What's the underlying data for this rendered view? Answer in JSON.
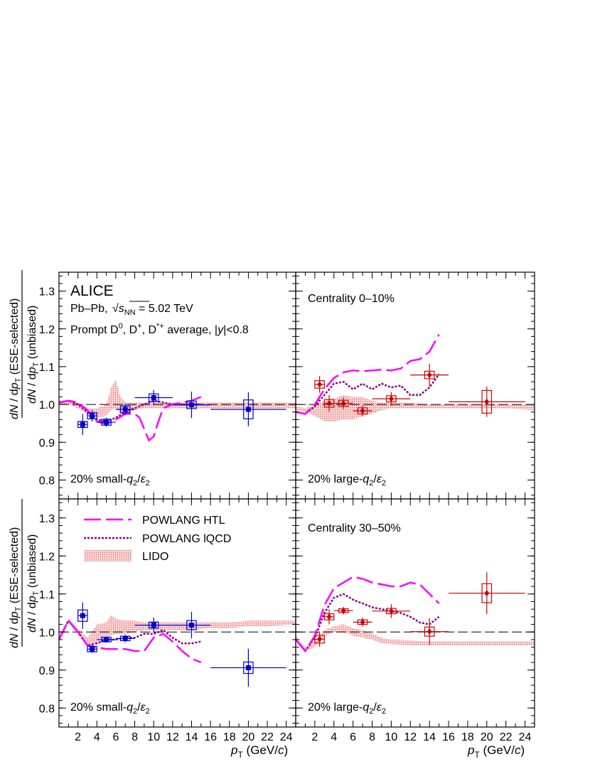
{
  "chart_data": {
    "type": "scatter",
    "experiment": "ALICE",
    "system_line": [
      "Pb–Pb, ",
      "s",
      "NN",
      " = 5.02 TeV"
    ],
    "species_line": [
      "Prompt D",
      "0",
      ", D",
      "+",
      ", D",
      "*+",
      " average, |",
      "y",
      "|<0.8"
    ],
    "ylabel_numerator": [
      "dN / dp",
      "T",
      " (ESE-selected)"
    ],
    "ylabel_denominator": [
      "dN / dp",
      "T",
      " (unbiased)"
    ],
    "xlabel": [
      "p",
      "T",
      " (GeV/",
      "c",
      ")"
    ],
    "xlim": [
      0,
      25
    ],
    "ylim": [
      0.75,
      1.35
    ],
    "x_ticks": [
      2,
      4,
      6,
      8,
      10,
      12,
      14,
      16,
      18,
      20,
      22,
      24
    ],
    "y_ticks": [
      0.8,
      0.9,
      1.0,
      1.1,
      1.2,
      1.3
    ],
    "y_tick_labels": [
      "0.8",
      "0.9",
      "1.0",
      "1.1",
      "1.2",
      "1.3"
    ],
    "legend": [
      {
        "key": "htl",
        "label": "POWLANG HTL",
        "color": "#ff00ff",
        "style": "long-dash"
      },
      {
        "key": "lqcd",
        "label": "POWLANG lQCD",
        "color": "#8b008b",
        "style": "dotted"
      },
      {
        "key": "lido",
        "label": "LIDO",
        "color": "#f08080",
        "style": "band"
      }
    ],
    "panels": [
      {
        "id": "small-q2-0-10",
        "centrality_label": "",
        "selection_label": [
          "20% small-",
          "q",
          "2",
          "/",
          "ε",
          "2"
        ],
        "marker_color": "#0000cc",
        "points": [
          {
            "x": 2.5,
            "y": 0.947,
            "stat": 0.028,
            "xerr": 0.5,
            "sys": 0.008
          },
          {
            "x": 3.5,
            "y": 0.97,
            "stat": 0.015,
            "xerr": 0.5,
            "sys": 0.008
          },
          {
            "x": 5.0,
            "y": 0.953,
            "stat": 0.012,
            "xerr": 1.0,
            "sys": 0.008
          },
          {
            "x": 7.0,
            "y": 0.987,
            "stat": 0.015,
            "xerr": 1.0,
            "sys": 0.009
          },
          {
            "x": 10.0,
            "y": 1.018,
            "stat": 0.02,
            "xerr": 2.0,
            "sys": 0.01
          },
          {
            "x": 14.0,
            "y": 0.999,
            "stat": 0.035,
            "xerr": 2.0,
            "sys": 0.01
          },
          {
            "x": 20.0,
            "y": 0.987,
            "stat": 0.045,
            "xerr": 4.0,
            "sys": 0.025
          }
        ],
        "htl": {
          "x": [
            0,
            1,
            2,
            3,
            4,
            5,
            6,
            7,
            8,
            8.5,
            9,
            9.5,
            10,
            10.5,
            11,
            12,
            13,
            14,
            15
          ],
          "y": [
            1.005,
            1.01,
            1.005,
            0.985,
            0.955,
            0.948,
            0.96,
            0.975,
            0.975,
            0.965,
            0.935,
            0.905,
            0.915,
            0.955,
            0.99,
            1.0,
            1.005,
            1.01,
            1.02
          ]
        },
        "lqcd": {
          "x": [
            0,
            1,
            2,
            3,
            4,
            5,
            6,
            7,
            8,
            9,
            10,
            11,
            12,
            13,
            14,
            15
          ],
          "y": [
            1.005,
            1.01,
            1.0,
            0.98,
            0.96,
            0.955,
            0.965,
            0.98,
            0.99,
            1.0,
            1.01,
            1.005,
            1.0,
            1.0,
            1.0,
            1.0
          ]
        },
        "lido": {
          "x": [
            0,
            1,
            2,
            3,
            4,
            5,
            5.5,
            6,
            6.5,
            7,
            8,
            9,
            10,
            11,
            12,
            14,
            16,
            18,
            20,
            22,
            25
          ],
          "lo": [
            1.0,
            1.0,
            0.99,
            0.975,
            0.965,
            0.97,
            0.985,
            0.99,
            0.975,
            0.975,
            0.985,
            0.99,
            0.99,
            0.99,
            0.99,
            0.99,
            0.99,
            0.99,
            0.99,
            0.99,
            0.99
          ],
          "hi": [
            1.01,
            1.01,
            1.005,
            0.99,
            0.99,
            1.0,
            1.045,
            1.065,
            1.02,
            1.005,
            1.005,
            1.005,
            1.005,
            1.005,
            1.005,
            1.005,
            1.005,
            1.005,
            1.005,
            1.005,
            1.005
          ]
        }
      },
      {
        "id": "large-q2-0-10",
        "centrality_label": "Centrality 0–10%",
        "selection_label": [
          "20% large-",
          "q",
          "2",
          "/",
          "ε",
          "2"
        ],
        "marker_color": "#cc0000",
        "points": [
          {
            "x": 2.5,
            "y": 1.053,
            "stat": 0.022,
            "xerr": 0.5,
            "sys": 0.01
          },
          {
            "x": 3.5,
            "y": 1.003,
            "stat": 0.022,
            "xerr": 0.5,
            "sys": 0.01
          },
          {
            "x": 5.0,
            "y": 1.003,
            "stat": 0.015,
            "xerr": 1.0,
            "sys": 0.008
          },
          {
            "x": 7.0,
            "y": 0.983,
            "stat": 0.015,
            "xerr": 1.0,
            "sys": 0.008
          },
          {
            "x": 10.0,
            "y": 1.015,
            "stat": 0.018,
            "xerr": 2.0,
            "sys": 0.008
          },
          {
            "x": 14.0,
            "y": 1.078,
            "stat": 0.03,
            "xerr": 2.0,
            "sys": 0.01
          },
          {
            "x": 20.0,
            "y": 1.007,
            "stat": 0.04,
            "xerr": 4.0,
            "sys": 0.03
          }
        ],
        "htl": {
          "x": [
            0,
            1,
            2,
            3,
            4,
            5,
            6,
            7,
            8,
            9,
            10,
            11,
            12,
            13,
            14,
            15
          ],
          "y": [
            0.98,
            0.975,
            1.0,
            1.04,
            1.07,
            1.085,
            1.09,
            1.088,
            1.09,
            1.092,
            1.09,
            1.095,
            1.115,
            1.12,
            1.14,
            1.185
          ]
        },
        "lqcd": {
          "x": [
            0,
            1,
            2,
            3,
            4,
            5,
            6,
            7,
            8,
            9,
            10,
            11,
            12,
            13,
            14,
            15
          ],
          "y": [
            0.98,
            0.975,
            0.995,
            1.025,
            1.055,
            1.06,
            1.04,
            1.055,
            1.04,
            1.055,
            1.045,
            1.05,
            1.025,
            1.025,
            1.045,
            1.08
          ]
        },
        "lido": {
          "x": [
            0,
            1,
            2,
            3,
            4,
            5,
            6,
            7,
            8,
            9,
            10,
            12,
            14,
            16,
            18,
            20,
            22,
            25
          ],
          "lo": [
            0.985,
            0.98,
            0.97,
            0.955,
            0.955,
            0.96,
            0.96,
            0.97,
            0.975,
            0.985,
            0.99,
            0.99,
            0.99,
            0.99,
            0.99,
            0.99,
            0.99,
            0.985
          ],
          "hi": [
            0.995,
            0.99,
            1.0,
            1.01,
            1.015,
            1.025,
            1.02,
            1.02,
            1.01,
            1.005,
            1.005,
            1.005,
            1.0,
            1.0,
            1.0,
            1.0,
            1.0,
            0.998
          ]
        }
      },
      {
        "id": "small-q2-30-50",
        "centrality_label": "",
        "selection_label": [
          "20% small-",
          "q",
          "2",
          "/",
          "ε",
          "2"
        ],
        "marker_color": "#0000cc",
        "points": [
          {
            "x": 2.5,
            "y": 1.043,
            "stat": 0.035,
            "xerr": 0.5,
            "sys": 0.015
          },
          {
            "x": 3.5,
            "y": 0.955,
            "stat": 0.01,
            "xerr": 0.5,
            "sys": 0.007
          },
          {
            "x": 5.0,
            "y": 0.98,
            "stat": 0.008,
            "xerr": 1.0,
            "sys": 0.006
          },
          {
            "x": 7.0,
            "y": 0.983,
            "stat": 0.01,
            "xerr": 1.0,
            "sys": 0.006
          },
          {
            "x": 10.0,
            "y": 1.018,
            "stat": 0.02,
            "xerr": 2.0,
            "sys": 0.008
          },
          {
            "x": 14.0,
            "y": 1.018,
            "stat": 0.035,
            "xerr": 2.0,
            "sys": 0.012
          },
          {
            "x": 20.0,
            "y": 0.906,
            "stat": 0.05,
            "xerr": 4.0,
            "sys": 0.015
          }
        ],
        "htl": {
          "x": [
            0,
            1,
            2,
            3,
            4,
            5,
            6,
            7,
            8,
            9,
            10,
            11,
            12,
            13,
            14,
            15
          ],
          "y": [
            0.98,
            1.03,
            1.0,
            0.965,
            0.96,
            0.955,
            0.955,
            0.955,
            0.95,
            0.95,
            0.985,
            0.995,
            0.975,
            0.95,
            0.93,
            0.92
          ]
        },
        "lqcd": {
          "x": [
            0,
            1,
            2,
            3,
            4,
            5,
            6,
            7,
            8,
            9,
            10,
            11,
            12,
            13,
            14,
            15
          ],
          "y": [
            0.98,
            1.03,
            1.0,
            0.965,
            0.97,
            0.98,
            0.98,
            0.985,
            0.985,
            0.995,
            0.995,
            1.005,
            0.985,
            0.97,
            0.97,
            0.975
          ]
        },
        "lido": {
          "x": [
            0,
            1,
            2,
            3,
            4,
            5,
            5.5,
            6,
            7,
            8,
            9,
            10,
            12,
            14,
            16,
            18,
            20,
            22,
            25
          ],
          "lo": [
            0.98,
            1.025,
            0.995,
            0.965,
            0.97,
            0.985,
            0.99,
            0.995,
            0.995,
            1.0,
            1.005,
            1.005,
            1.005,
            1.005,
            1.01,
            1.01,
            1.015,
            1.015,
            1.02
          ],
          "hi": [
            0.99,
            1.035,
            1.01,
            0.985,
            1.02,
            1.025,
            1.045,
            1.035,
            1.03,
            1.03,
            1.025,
            1.025,
            1.025,
            1.025,
            1.025,
            1.025,
            1.03,
            1.03,
            1.03
          ]
        }
      },
      {
        "id": "large-q2-30-50",
        "centrality_label": "Centrality 30–50%",
        "selection_label": [
          "20% large-",
          "q",
          "2",
          "/",
          "ε",
          "2"
        ],
        "marker_color": "#cc0000",
        "points": [
          {
            "x": 2.5,
            "y": 0.981,
            "stat": 0.02,
            "xerr": 0.5,
            "sys": 0.01
          },
          {
            "x": 3.5,
            "y": 1.04,
            "stat": 0.02,
            "xerr": 0.5,
            "sys": 0.008
          },
          {
            "x": 5.0,
            "y": 1.056,
            "stat": 0.01,
            "xerr": 1.0,
            "sys": 0.005
          },
          {
            "x": 7.0,
            "y": 1.026,
            "stat": 0.012,
            "xerr": 1.0,
            "sys": 0.006
          },
          {
            "x": 10.0,
            "y": 1.055,
            "stat": 0.018,
            "xerr": 2.0,
            "sys": 0.007
          },
          {
            "x": 14.0,
            "y": 1.001,
            "stat": 0.035,
            "xerr": 2.0,
            "sys": 0.012
          },
          {
            "x": 20.0,
            "y": 1.102,
            "stat": 0.055,
            "xerr": 4.0,
            "sys": 0.025
          }
        ],
        "htl": {
          "x": [
            0,
            1,
            2,
            3,
            4,
            5,
            6,
            7,
            8,
            9,
            10,
            11,
            12,
            13,
            14,
            15
          ],
          "y": [
            0.98,
            0.95,
            0.99,
            1.07,
            1.115,
            1.13,
            1.145,
            1.14,
            1.13,
            1.125,
            1.12,
            1.12,
            1.13,
            1.125,
            1.1,
            1.075
          ]
        },
        "lqcd": {
          "x": [
            0,
            1,
            2,
            3,
            4,
            5,
            6,
            7,
            8,
            9,
            10,
            11,
            12,
            13,
            14,
            15
          ],
          "y": [
            0.98,
            0.95,
            0.985,
            1.05,
            1.09,
            1.1,
            1.085,
            1.075,
            1.065,
            1.06,
            1.055,
            1.05,
            1.04,
            1.025,
            1.02,
            1.04
          ]
        },
        "lido": {
          "x": [
            0,
            1,
            2,
            3,
            4,
            5,
            6,
            7,
            8,
            9,
            10,
            12,
            14,
            16,
            18,
            20,
            22,
            25
          ],
          "lo": [
            0.98,
            0.95,
            0.96,
            0.99,
            1.0,
            1.0,
            0.99,
            0.985,
            0.98,
            0.97,
            0.968,
            0.965,
            0.965,
            0.965,
            0.965,
            0.965,
            0.965,
            0.965
          ],
          "hi": [
            0.99,
            0.96,
            0.975,
            1.005,
            1.015,
            1.02,
            1.01,
            1.005,
            0.995,
            0.985,
            0.98,
            0.978,
            0.975,
            0.975,
            0.975,
            0.975,
            0.975,
            0.975
          ]
        }
      }
    ]
  }
}
